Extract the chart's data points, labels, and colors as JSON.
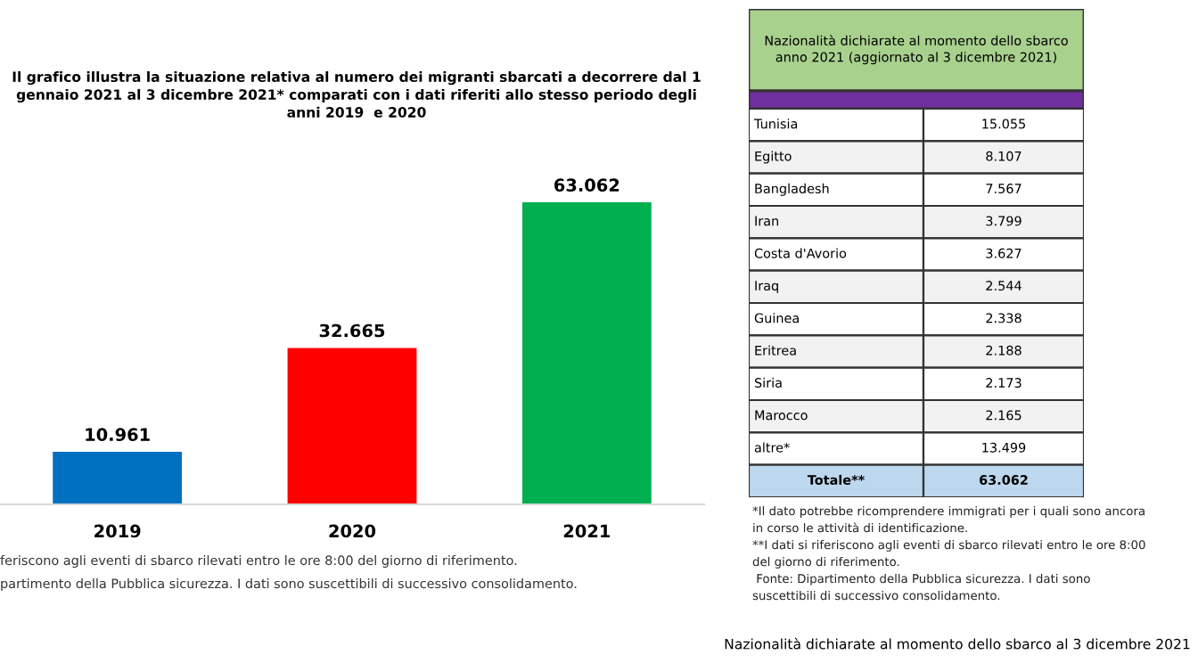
{
  "chart_data": [
    {
      "type": "bar",
      "title": "Il grafico illustra la situazione relativa al numero dei migranti sbarcati a decorrere dal 1\ngennaio 2021 al 3 dicembre 2021* comparati con i dati riferiti allo stesso periodo degli\nanni 2019  e 2020",
      "categories": [
        "2019",
        "2020",
        "2021"
      ],
      "values": [
        10961,
        32665,
        63062
      ],
      "colors": [
        "#0070c0",
        "#ff0000",
        "#00b050"
      ],
      "value_labels": [
        "10.961",
        "32.665",
        "63.062"
      ],
      "annotations": [
        "feriscono agli eventi di sbarco rilevati entro le ore 8:00 del giorno di riferimento.",
        "partimento della Pubblica sicurezza. I dati sono suscettibili di successivo consolidamento."
      ]
    },
    {
      "type": "other",
      "title": "Nazionalità dichiarate al momento dello sbarco\nanno 2021 (aggiornato al 3 dicembre 2021)",
      "categories": [
        "Tunisia",
        "Egitto",
        "Bangladesh",
        "Iran",
        "Costa d'Avorio",
        "Iraq",
        "Guinea",
        "Eritrea",
        "Siria",
        "Marocco",
        "altre*",
        "Totale**"
      ],
      "value_labels": [
        "15.055",
        "8.107",
        "7.567",
        "3.799",
        "3.627",
        "2.544",
        "2.338",
        "2.188",
        "2.173",
        "2.165",
        "13.499",
        "63.062"
      ],
      "annotations": [
        "*Il dato potrebbe ricomprendere immigrati per i quali sono ancora\nin corso le attività di identificazione.\n**I dati si riferiscono agli eventi di sbarco rilevati entro le ore 8:00\ndel giorno di riferimento.\n Fonte: Dipartimento della Pubblica sicurezza. I dati sono\nsuscettibili di successivo consolidamento.",
        "Nazionalità dichiarate al momento dello sbarco al 3 dicembre 2021"
      ]
    }
  ]
}
